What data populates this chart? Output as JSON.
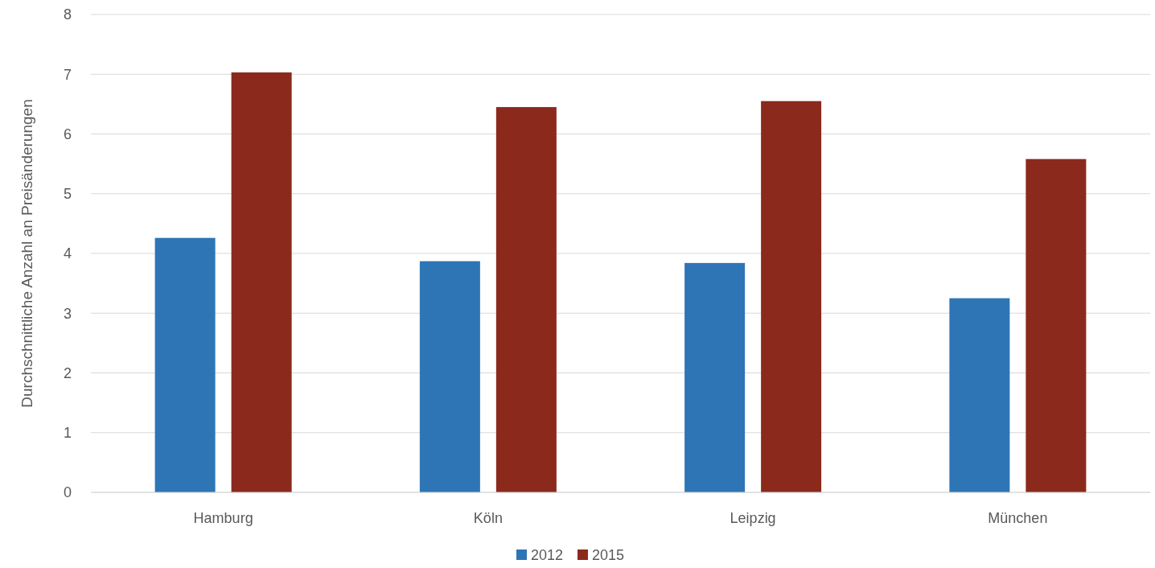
{
  "chart_data": {
    "type": "bar",
    "ylabel": "Durchschnittliche Anzahl an Preisänderungen",
    "categories": [
      "Hamburg",
      "Köln",
      "Leipzig",
      "München"
    ],
    "series": [
      {
        "name": "2012",
        "color": "#2e75b6",
        "values": [
          4.26,
          3.87,
          3.84,
          3.25
        ]
      },
      {
        "name": "2015",
        "color": "#8b2a1c",
        "values": [
          7.03,
          6.45,
          6.55,
          5.58
        ]
      }
    ],
    "ylim": [
      0,
      8
    ],
    "yticks": [
      0,
      1,
      2,
      3,
      4,
      5,
      6,
      7,
      8
    ],
    "grid": "y",
    "legend": "bottom"
  }
}
